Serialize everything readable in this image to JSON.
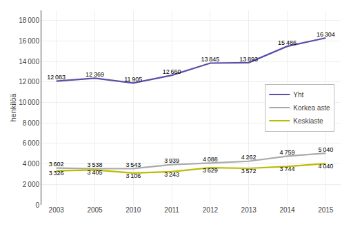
{
  "chart_data": {
    "type": "line",
    "ylabel": "henkilöä",
    "categories": [
      "2003",
      "2005",
      "2010",
      "2011",
      "2012",
      "2013",
      "2014",
      "2015"
    ],
    "series": [
      {
        "name": "Yht",
        "color": "#5B4EA8",
        "values": [
          12083,
          12369,
          11905,
          12660,
          13845,
          13893,
          15486,
          16304
        ],
        "value_labels": [
          "12 083",
          "12 369",
          "11 905",
          "12 660",
          "13 845",
          "13 893",
          "15 486",
          "16 304"
        ]
      },
      {
        "name": "Korkea aste",
        "color": "#AAAAAA",
        "values": [
          3602,
          3538,
          3543,
          3939,
          4088,
          4262,
          4759,
          5040
        ],
        "value_labels": [
          "3 602",
          "3 538",
          "3 543",
          "3 939",
          "4 088",
          "4 262",
          "4 759",
          "5 040"
        ]
      },
      {
        "name": "Keskiaste",
        "color": "#BBBB00",
        "values": [
          3326,
          3405,
          3106,
          3243,
          3629,
          3572,
          3744,
          4040
        ],
        "value_labels": [
          "3 326",
          "3 405",
          "3 106",
          "3 243",
          "3 629",
          "3 572",
          "3 744",
          "4 040"
        ]
      }
    ],
    "ylim": [
      0,
      19000
    ],
    "yticks": [
      0,
      {
        "value": 2000,
        "label": "2 000"
      },
      {
        "value": 4000,
        "label": "4 000"
      },
      {
        "value": 6000,
        "label": "6 000"
      },
      {
        "value": 8000,
        "label": "8 000"
      },
      {
        "value": 10000,
        "label": "10 000"
      },
      {
        "value": 12000,
        "label": "12 000"
      },
      {
        "value": 14000,
        "label": "14 000"
      },
      {
        "value": 16000,
        "label": "16 000"
      },
      {
        "value": 18000,
        "label": "18 000"
      }
    ],
    "grid": true,
    "legend": "right",
    "data_labels": true
  }
}
